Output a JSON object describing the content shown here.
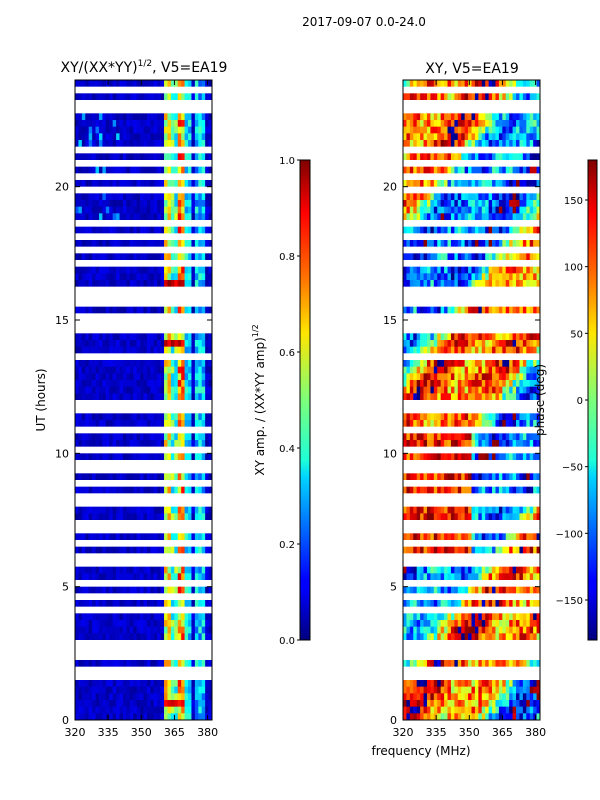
{
  "suptitle": "2017-09-07 0.0-24.0",
  "xlabel": "frequency (MHz)",
  "chart_data": [
    {
      "type": "heatmap",
      "title_main": "XY/(XX*YY)",
      "title_sup": "1/2",
      "title_tail": ", V5=EA19",
      "ylabel": "UT (hours)",
      "xlim": [
        320,
        382
      ],
      "ylim": [
        0,
        24
      ],
      "xticks": [
        320,
        335,
        350,
        365,
        380
      ],
      "yticks": [
        0,
        5,
        10,
        15,
        20
      ],
      "colormap": "jet",
      "colorbar": {
        "label_main": "XY amp. / (XX*YY amp)",
        "label_sup": "1/2",
        "range": [
          0.0,
          1.0
        ],
        "ticks": [
          "0.0",
          "0.2",
          "0.4",
          "0.6",
          "0.8",
          "1.0"
        ]
      }
    },
    {
      "type": "heatmap",
      "title": "XY, V5=EA19",
      "xlim": [
        320,
        382
      ],
      "ylim": [
        0,
        24
      ],
      "xticks": [
        320,
        335,
        350,
        365,
        380
      ],
      "yticks": [
        0,
        5,
        10,
        15,
        20
      ],
      "colormap": "jet",
      "colorbar": {
        "label": "phase (deg)",
        "range": [
          -180,
          180
        ],
        "ticks": [
          "−150",
          "−100",
          "−50",
          "0",
          "50",
          "100",
          "150"
        ]
      }
    }
  ]
}
